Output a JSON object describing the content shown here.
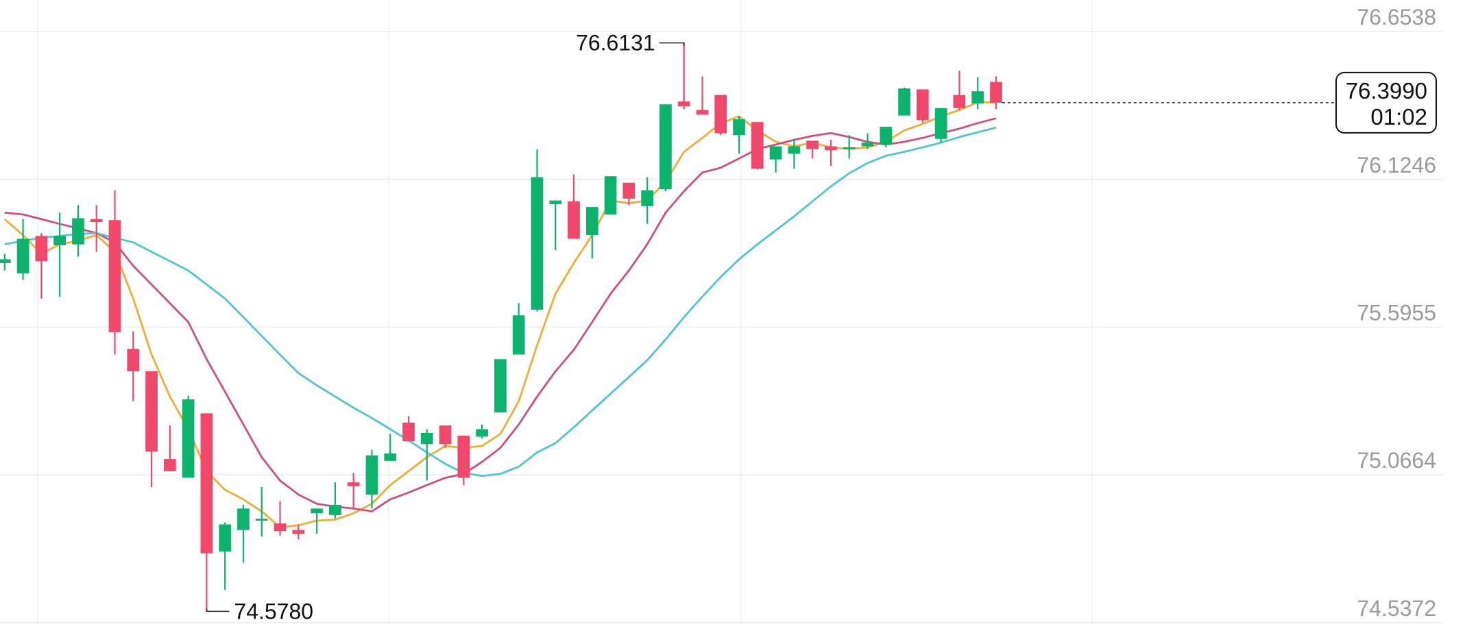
{
  "chart_data": {
    "type": "candlestick",
    "ylim": [
      74.5372,
      76.6538
    ],
    "yticks": [
      74.5372,
      75.0664,
      75.5955,
      76.1246,
      76.6538
    ],
    "grid": true,
    "up_color": "#0db26d",
    "down_color": "#f0486b",
    "high_label": "76.6131",
    "low_label": "74.5780",
    "last_price_label": "76.3990",
    "countdown": "01:02",
    "open": [
      75.825,
      75.7882,
      75.9219,
      75.8885,
      75.8918,
      75.982,
      75.9787,
      75.5175,
      75.4373,
      75.1231,
      75.0563,
      75.2869,
      74.7923,
      74.8691,
      74.9026,
      74.8925,
      74.8691,
      74.9293,
      74.9226,
      75.0396,
      74.9961,
      75.1165,
      75.2535,
      75.1766,
      75.2434,
      75.2067,
      75.2033,
      75.2902,
      75.4974,
      75.6579,
      76.0355,
      76.0455,
      75.9252,
      75.9987,
      76.1124,
      76.0288,
      76.089,
      76.4031,
      76.373,
      76.4265,
      76.2828,
      76.3296,
      76.1959,
      76.216,
      76.2628,
      76.2427,
      76.2327,
      76.2427,
      76.2494,
      76.353,
      76.4466,
      76.2694,
      76.4265,
      76.3964,
      76.4733
    ],
    "high": [
      75.8584,
      75.982,
      75.9319,
      76.0054,
      76.0322,
      76.0322,
      76.0856,
      75.581,
      75.4373,
      75.2434,
      75.3504,
      75.2869,
      74.8959,
      74.9594,
      75.0229,
      74.9727,
      74.8892,
      74.946,
      75.0396,
      75.073,
      75.1566,
      75.2134,
      75.2769,
      75.2301,
      75.2434,
      75.2067,
      75.2468,
      75.4807,
      75.6812,
      76.2327,
      76.0489,
      76.1424,
      76.0255,
      76.1358,
      76.1124,
      76.1324,
      76.3931,
      76.6131,
      76.4934,
      76.4265,
      76.3496,
      76.3296,
      76.2427,
      76.2661,
      76.2628,
      76.2661,
      76.2828,
      76.2895,
      76.3129,
      76.4533,
      76.4466,
      76.3797,
      76.5134,
      76.49,
      76.4934
    ],
    "low": [
      75.7982,
      75.7648,
      75.698,
      75.7046,
      75.8483,
      75.8651,
      75.4974,
      75.3303,
      75.0229,
      75.0797,
      75.0563,
      74.578,
      74.6553,
      74.7522,
      74.8457,
      74.8491,
      74.8357,
      74.8558,
      74.9092,
      74.946,
      74.946,
      75.1165,
      75.1866,
      75.0463,
      75.1632,
      75.0296,
      75.1967,
      75.2902,
      75.4974,
      75.6512,
      75.8717,
      75.9118,
      75.8417,
      75.9987,
      76.0322,
      75.9653,
      76.0823,
      76.3764,
      76.3563,
      76.2828,
      76.216,
      76.1592,
      76.1491,
      76.1625,
      76.1993,
      76.1725,
      76.1993,
      76.2327,
      76.2394,
      76.353,
      76.3263,
      76.2561,
      76.373,
      76.3764,
      76.3764
    ],
    "close": [
      75.8383,
      75.9118,
      75.8316,
      75.9219,
      75.9854,
      75.972,
      75.5776,
      75.4373,
      75.1499,
      75.0797,
      75.337,
      74.7856,
      74.8892,
      74.946,
      74.9092,
      74.8658,
      74.8558,
      74.946,
      74.9594,
      75.0262,
      75.1365,
      75.1432,
      75.1866,
      75.2167,
      75.1766,
      75.0563,
      75.2301,
      75.4807,
      75.6378,
      76.1324,
      76.0489,
      75.9118,
      76.0255,
      76.1358,
      76.0556,
      76.0856,
      76.3931,
      76.3864,
      76.3563,
      76.2895,
      76.3396,
      76.1625,
      76.2427,
      76.2427,
      76.2327,
      76.2293,
      76.2394,
      76.2561,
      76.3129,
      76.4499,
      76.3363,
      76.3797,
      76.3797,
      76.4399,
      76.399
    ],
    "series": [
      {
        "color": "#f0ad33",
        "values": [
          75.982,
          75.925,
          75.858,
          75.892,
          75.905,
          75.925,
          75.865,
          75.698,
          75.497,
          75.347,
          75.23,
          75.08,
          75.013,
          74.979,
          74.936,
          74.879,
          74.886,
          74.903,
          74.906,
          74.929,
          74.963,
          75.03,
          75.08,
          75.13,
          75.17,
          75.163,
          75.17,
          75.213,
          75.33,
          75.531,
          75.715,
          75.825,
          75.925,
          76.049,
          76.039,
          76.049,
          76.116,
          76.223,
          76.273,
          76.326,
          76.35,
          76.3,
          76.259,
          76.243,
          76.256,
          76.239,
          76.233,
          76.239,
          76.259,
          76.3,
          76.323,
          76.35,
          76.373,
          76.4,
          76.4
        ]
      },
      {
        "color": "#cf4f7c",
        "values": [
          76.005,
          75.999,
          75.982,
          75.965,
          75.949,
          75.932,
          75.899,
          75.815,
          75.748,
          75.681,
          75.614,
          75.481,
          75.364,
          75.247,
          75.13,
          75.046,
          74.996,
          74.963,
          74.953,
          74.946,
          74.936,
          74.979,
          75.003,
          75.03,
          75.056,
          75.07,
          75.113,
          75.163,
          75.247,
          75.347,
          75.437,
          75.514,
          75.614,
          75.715,
          75.798,
          75.892,
          76.005,
          76.082,
          76.149,
          76.166,
          76.199,
          76.233,
          76.249,
          76.266,
          76.28,
          76.29,
          76.276,
          76.259,
          76.249,
          76.259,
          76.273,
          76.29,
          76.306,
          76.326,
          76.343
        ]
      },
      {
        "color": "#4ec6cd",
        "values": [
          75.892,
          75.905,
          75.915,
          75.922,
          75.929,
          75.932,
          75.915,
          75.899,
          75.865,
          75.832,
          75.798,
          75.748,
          75.698,
          75.631,
          75.564,
          75.497,
          75.431,
          75.387,
          75.347,
          75.307,
          75.27,
          75.23,
          75.19,
          75.147,
          75.106,
          75.073,
          75.063,
          75.07,
          75.096,
          75.147,
          75.18,
          75.237,
          75.297,
          75.357,
          75.417,
          75.477,
          75.551,
          75.631,
          75.705,
          75.775,
          75.838,
          75.892,
          75.942,
          75.992,
          76.046,
          76.099,
          76.146,
          76.183,
          76.209,
          76.223,
          76.239,
          76.256,
          76.276,
          76.293,
          76.31
        ]
      }
    ]
  }
}
